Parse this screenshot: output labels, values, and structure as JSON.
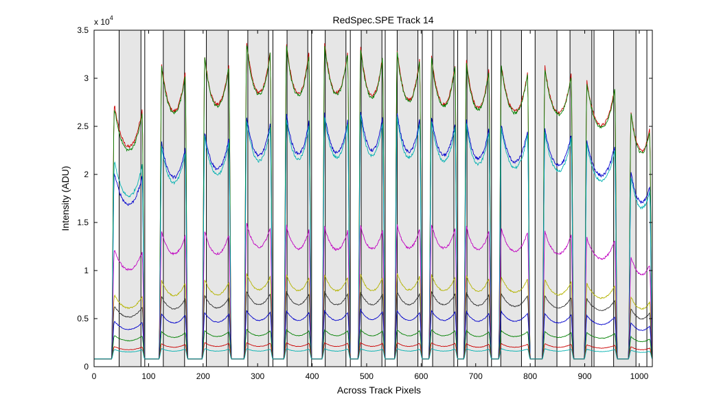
{
  "chart_data": {
    "type": "line",
    "title": "RedSpec.SPE   Track 14",
    "xlabel": "Across Track Pixels",
    "ylabel": "Intensity (ADU)",
    "xlim": [
      0,
      1024
    ],
    "ylim": [
      0,
      35000
    ],
    "y_multiplier_base": "x 10",
    "y_multiplier_exp": "4",
    "x_ticks": [
      0,
      100,
      200,
      300,
      400,
      500,
      600,
      700,
      800,
      900,
      1000
    ],
    "x_tick_labels": [
      "0",
      "100",
      "200",
      "300",
      "400",
      "500",
      "600",
      "700",
      "800",
      "900",
      "1000"
    ],
    "y_ticks": [
      0,
      5000,
      10000,
      15000,
      20000,
      25000,
      30000,
      35000
    ],
    "y_tick_labels": [
      "0",
      "0.5",
      "1",
      "1.5",
      "2",
      "2.5",
      "3",
      "3.5"
    ],
    "shaded_bands": [
      [
        46,
        86
      ],
      [
        127,
        166
      ],
      [
        206,
        246
      ],
      [
        282,
        320
      ],
      [
        354,
        392
      ],
      [
        424,
        462
      ],
      [
        490,
        528
      ],
      [
        556,
        594
      ],
      [
        621,
        660
      ],
      [
        684,
        722
      ],
      [
        746,
        784
      ],
      [
        809,
        849
      ],
      [
        873,
        913
      ],
      [
        953,
        994
      ]
    ],
    "band_edges": [
      46,
      86,
      93,
      127,
      166,
      206,
      246,
      282,
      320,
      328,
      354,
      392,
      399,
      424,
      462,
      470,
      490,
      528,
      534,
      556,
      594,
      602,
      621,
      660,
      667,
      684,
      722,
      729,
      746,
      784,
      809,
      849,
      873,
      913,
      917,
      953,
      994,
      1014
    ],
    "peaks": [
      {
        "x0": 32,
        "x1": 93,
        "g0": 38,
        "g1": 89
      },
      {
        "x0": 119,
        "x1": 172,
        "g0": 124,
        "g1": 169
      },
      {
        "x0": 198,
        "x1": 252,
        "g0": 203,
        "g1": 249
      },
      {
        "x0": 275,
        "x1": 328,
        "g0": 280,
        "g1": 325
      },
      {
        "x0": 348,
        "x1": 399,
        "g0": 353,
        "g1": 396
      },
      {
        "x0": 418,
        "x1": 470,
        "g0": 423,
        "g1": 467
      },
      {
        "x0": 484,
        "x1": 534,
        "g0": 489,
        "g1": 531
      },
      {
        "x0": 551,
        "x1": 602,
        "g0": 556,
        "g1": 599
      },
      {
        "x0": 614,
        "x1": 667,
        "g0": 619,
        "g1": 664
      },
      {
        "x0": 678,
        "x1": 729,
        "g0": 683,
        "g1": 726
      },
      {
        "x0": 742,
        "x1": 800,
        "g0": 747,
        "g1": 797
      },
      {
        "x0": 822,
        "x1": 880,
        "g0": 827,
        "g1": 877
      },
      {
        "x0": 899,
        "x1": 960,
        "g0": 904,
        "g1": 957
      },
      {
        "x0": 980,
        "x1": 1024,
        "g0": 985,
        "g1": 1024
      }
    ],
    "series": [
      {
        "color": "#cc0000",
        "baseline": 800,
        "levels": [
          26000,
          30200,
          31000,
          32400,
          32300,
          32400,
          32000,
          31600,
          31000,
          30600,
          30200,
          30000,
          28500,
          25500
        ],
        "dip": 0.12,
        "noise": 180
      },
      {
        "color": "#008000",
        "baseline": 800,
        "levels": [
          25600,
          30000,
          30800,
          32200,
          32100,
          32200,
          31800,
          31400,
          30800,
          30400,
          30000,
          29800,
          28300,
          25300
        ],
        "dip": 0.12,
        "noise": 160
      },
      {
        "color": "#0000cc",
        "baseline": 800,
        "levels": [
          19200,
          22400,
          23400,
          25000,
          25200,
          25300,
          25600,
          25400,
          25000,
          24600,
          24200,
          23800,
          22600,
          19400
        ],
        "dip": 0.12,
        "noise": 160
      },
      {
        "color": "#00b0b0",
        "baseline": 800,
        "levels": [
          20400,
          22000,
          23000,
          24600,
          24800,
          25000,
          25200,
          25000,
          24600,
          24200,
          23800,
          23400,
          22200,
          19000
        ],
        "dip": 0.13,
        "noise": 150
      },
      {
        "color": "#c000c0",
        "baseline": 800,
        "levels": [
          11600,
          13500,
          13500,
          14300,
          14100,
          14000,
          14100,
          14200,
          14200,
          14000,
          13800,
          13500,
          12900,
          11000
        ],
        "dip": 0.13,
        "noise": 110
      },
      {
        "color": "#b4b400",
        "baseline": 800,
        "levels": [
          7100,
          8600,
          8700,
          9300,
          9200,
          9200,
          9200,
          9300,
          9200,
          9100,
          9000,
          8700,
          8300,
          7000
        ],
        "dip": 0.14,
        "noise": 70
      },
      {
        "color": "#303030",
        "baseline": 800,
        "levels": [
          6000,
          7000,
          7100,
          7500,
          7500,
          7500,
          7500,
          7500,
          7500,
          7400,
          7300,
          7100,
          6800,
          5800
        ],
        "dip": 0.14,
        "noise": 60
      },
      {
        "color": "#0000cc",
        "baseline": 800,
        "levels": [
          4500,
          5300,
          5400,
          5600,
          5600,
          5600,
          5700,
          5600,
          5600,
          5500,
          5500,
          5300,
          5100,
          4400
        ],
        "dip": 0.14,
        "noise": 45
      },
      {
        "color": "#008000",
        "baseline": 800,
        "levels": [
          3100,
          3500,
          3600,
          3700,
          3700,
          3700,
          3700,
          3700,
          3700,
          3600,
          3600,
          3500,
          3400,
          3000
        ],
        "dip": 0.13,
        "noise": 30
      },
      {
        "color": "#cc0000",
        "baseline": 800,
        "levels": [
          2000,
          2300,
          2400,
          2400,
          2400,
          2400,
          2400,
          2400,
          2400,
          2300,
          2300,
          2300,
          2200,
          2000
        ],
        "dip": 0.12,
        "noise": 22
      },
      {
        "color": "#00b0b0",
        "baseline": 800,
        "levels": [
          1700,
          1800,
          1800,
          1800,
          1800,
          1800,
          1800,
          1800,
          1800,
          1800,
          1800,
          1800,
          1750,
          1650
        ],
        "dip": 0.1,
        "noise": 18
      }
    ]
  }
}
